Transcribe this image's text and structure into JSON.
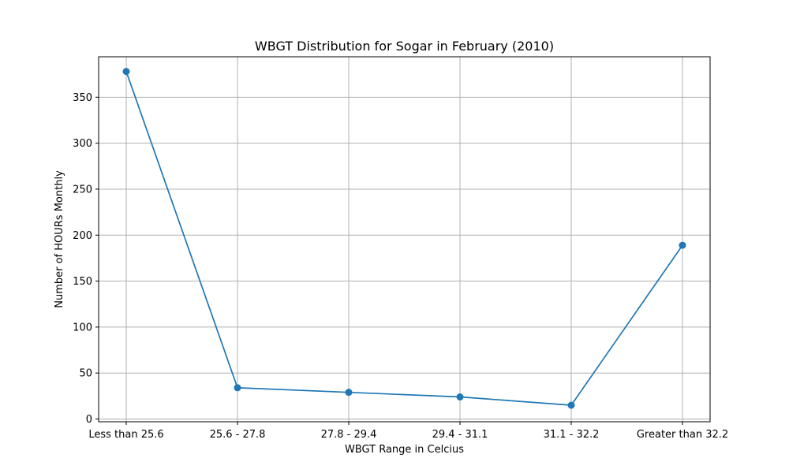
{
  "chart_data": {
    "type": "line",
    "title": "WBGT Distribution for Sogar in February (2010)",
    "xlabel": "WBGT Range in Celcius",
    "ylabel": "Number of HOURs Monthly",
    "categories": [
      "Less than 25.6",
      "25.6 - 27.8",
      "27.8 - 29.4",
      "29.4 - 31.1",
      "31.1 - 32.2",
      "Greater than 32.2"
    ],
    "series": [
      {
        "values": [
          378,
          34,
          29,
          24,
          15,
          189
        ],
        "color": "#1f77b4",
        "marker": "circle"
      }
    ],
    "ylim": [
      -3,
      394
    ],
    "yticks": [
      0,
      50,
      100,
      150,
      200,
      250,
      300,
      350
    ],
    "grid": true,
    "grid_color": "#b0b0b0"
  }
}
